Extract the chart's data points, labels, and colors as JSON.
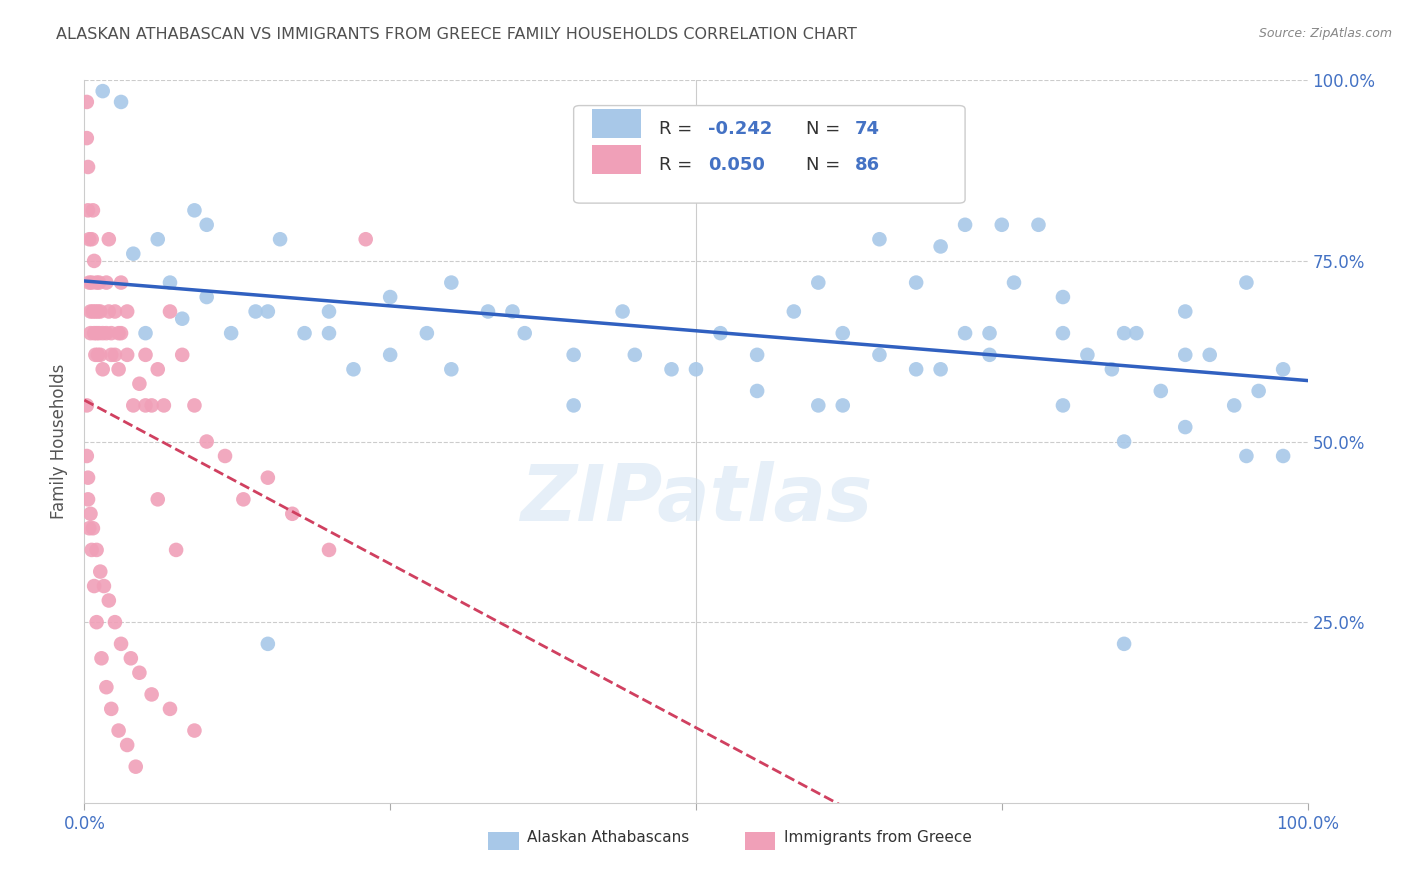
{
  "title": "ALASKAN ATHABASCAN VS IMMIGRANTS FROM GREECE FAMILY HOUSEHOLDS CORRELATION CHART",
  "source": "Source: ZipAtlas.com",
  "ylabel": "Family Households",
  "blue_color": "#a8c8e8",
  "pink_color": "#f0a0b8",
  "blue_line_color": "#3060c0",
  "pink_line_color": "#d04060",
  "axis_label_color": "#4472c4",
  "title_color": "#505050",
  "watermark": "ZIPatlas",
  "blue_x": [
    0.015,
    0.03,
    0.04,
    0.05,
    0.06,
    0.07,
    0.08,
    0.09,
    0.1,
    0.12,
    0.14,
    0.16,
    0.18,
    0.2,
    0.22,
    0.25,
    0.28,
    0.3,
    0.33,
    0.36,
    0.4,
    0.44,
    0.48,
    0.52,
    0.55,
    0.58,
    0.62,
    0.65,
    0.68,
    0.7,
    0.72,
    0.74,
    0.76,
    0.78,
    0.8,
    0.82,
    0.84,
    0.86,
    0.88,
    0.9,
    0.92,
    0.94,
    0.96,
    0.98,
    0.1,
    0.15,
    0.2,
    0.25,
    0.3,
    0.35,
    0.4,
    0.45,
    0.5,
    0.55,
    0.6,
    0.65,
    0.7,
    0.75,
    0.8,
    0.85,
    0.9,
    0.95,
    0.98,
    0.62,
    0.68,
    0.72,
    0.74,
    0.8,
    0.85,
    0.9,
    0.95,
    0.6,
    0.15,
    0.85
  ],
  "blue_y": [
    0.985,
    0.97,
    0.76,
    0.65,
    0.78,
    0.72,
    0.67,
    0.82,
    0.7,
    0.65,
    0.68,
    0.78,
    0.65,
    0.68,
    0.6,
    0.7,
    0.65,
    0.72,
    0.68,
    0.65,
    0.62,
    0.68,
    0.6,
    0.65,
    0.62,
    0.68,
    0.65,
    0.78,
    0.72,
    0.77,
    0.8,
    0.65,
    0.72,
    0.8,
    0.65,
    0.62,
    0.6,
    0.65,
    0.57,
    0.68,
    0.62,
    0.55,
    0.57,
    0.6,
    0.8,
    0.68,
    0.65,
    0.62,
    0.6,
    0.68,
    0.55,
    0.62,
    0.6,
    0.57,
    0.55,
    0.62,
    0.6,
    0.8,
    0.7,
    0.65,
    0.62,
    0.72,
    0.48,
    0.55,
    0.6,
    0.65,
    0.62,
    0.55,
    0.5,
    0.52,
    0.48,
    0.72,
    0.22,
    0.22
  ],
  "pink_x": [
    0.002,
    0.002,
    0.003,
    0.003,
    0.004,
    0.004,
    0.005,
    0.005,
    0.006,
    0.006,
    0.007,
    0.007,
    0.008,
    0.008,
    0.009,
    0.009,
    0.01,
    0.01,
    0.011,
    0.011,
    0.012,
    0.012,
    0.013,
    0.013,
    0.015,
    0.015,
    0.018,
    0.018,
    0.02,
    0.02,
    0.022,
    0.022,
    0.025,
    0.025,
    0.028,
    0.028,
    0.03,
    0.03,
    0.035,
    0.035,
    0.04,
    0.045,
    0.05,
    0.055,
    0.06,
    0.065,
    0.07,
    0.08,
    0.09,
    0.1,
    0.115,
    0.13,
    0.15,
    0.17,
    0.2,
    0.23,
    0.003,
    0.005,
    0.007,
    0.01,
    0.013,
    0.016,
    0.02,
    0.025,
    0.03,
    0.038,
    0.045,
    0.055,
    0.07,
    0.09,
    0.002,
    0.002,
    0.003,
    0.004,
    0.006,
    0.008,
    0.01,
    0.014,
    0.018,
    0.022,
    0.028,
    0.035,
    0.042,
    0.05,
    0.06,
    0.075
  ],
  "pink_y": [
    0.97,
    0.92,
    0.88,
    0.82,
    0.78,
    0.72,
    0.68,
    0.65,
    0.78,
    0.72,
    0.82,
    0.68,
    0.65,
    0.75,
    0.68,
    0.62,
    0.72,
    0.65,
    0.68,
    0.62,
    0.65,
    0.72,
    0.68,
    0.62,
    0.65,
    0.6,
    0.72,
    0.65,
    0.68,
    0.78,
    0.65,
    0.62,
    0.68,
    0.62,
    0.65,
    0.6,
    0.72,
    0.65,
    0.68,
    0.62,
    0.55,
    0.58,
    0.62,
    0.55,
    0.6,
    0.55,
    0.68,
    0.62,
    0.55,
    0.5,
    0.48,
    0.42,
    0.45,
    0.4,
    0.35,
    0.78,
    0.45,
    0.4,
    0.38,
    0.35,
    0.32,
    0.3,
    0.28,
    0.25,
    0.22,
    0.2,
    0.18,
    0.15,
    0.13,
    0.1,
    0.55,
    0.48,
    0.42,
    0.38,
    0.35,
    0.3,
    0.25,
    0.2,
    0.16,
    0.13,
    0.1,
    0.08,
    0.05,
    0.55,
    0.42,
    0.35
  ]
}
